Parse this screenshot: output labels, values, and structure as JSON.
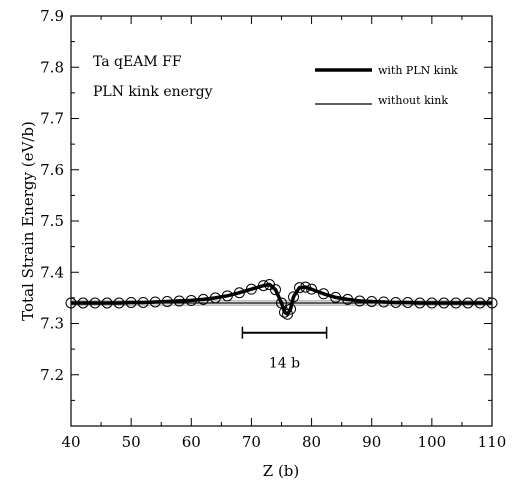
{
  "chart_data": {
    "type": "line",
    "title": "",
    "xlabel": "Z (b)",
    "ylabel": "Total Strain Energy (eV/b)",
    "xlim": [
      40,
      110
    ],
    "ylim": [
      7.1,
      7.9
    ],
    "xticks": [
      40,
      50,
      60,
      70,
      80,
      90,
      100,
      110
    ],
    "yticks": [
      7.2,
      7.3,
      7.4,
      7.5,
      7.6,
      7.7,
      7.8,
      7.9
    ],
    "xtick_labels": [
      "40",
      "50",
      "60",
      "70",
      "80",
      "90",
      "100",
      "110"
    ],
    "ytick_labels": [
      "7.2",
      "7.3",
      "7.4",
      "7.5",
      "7.6",
      "7.7",
      "7.8",
      "7.9"
    ],
    "annotations": {
      "line1": "Ta qEAM FF",
      "line2": "PLN kink energy",
      "bar_label": "14 b",
      "bar_range": [
        68.5,
        82.5
      ],
      "bar_y": 7.282
    },
    "legend": {
      "placement": "top-right"
    },
    "series": [
      {
        "name": "with PLN kink",
        "style": "thick-with-circles",
        "x": [
          40,
          42,
          44,
          46,
          48,
          50,
          52,
          54,
          56,
          58,
          60,
          62,
          64,
          66,
          68,
          70,
          72,
          73,
          74,
          75,
          75.5,
          76,
          76.5,
          77,
          78,
          79,
          80,
          82,
          84,
          86,
          88,
          90,
          92,
          94,
          96,
          98,
          100,
          102,
          104,
          106,
          108,
          110
        ],
        "y": [
          7.34,
          7.34,
          7.34,
          7.34,
          7.34,
          7.341,
          7.341,
          7.342,
          7.343,
          7.344,
          7.345,
          7.347,
          7.35,
          7.354,
          7.36,
          7.367,
          7.374,
          7.376,
          7.366,
          7.34,
          7.322,
          7.318,
          7.328,
          7.352,
          7.37,
          7.371,
          7.367,
          7.358,
          7.351,
          7.347,
          7.344,
          7.343,
          7.342,
          7.341,
          7.341,
          7.34,
          7.34,
          7.34,
          7.34,
          7.34,
          7.34,
          7.34
        ]
      },
      {
        "name": "without kink",
        "style": "thin",
        "x": [
          40,
          110
        ],
        "y": [
          7.34,
          7.34
        ]
      }
    ]
  }
}
